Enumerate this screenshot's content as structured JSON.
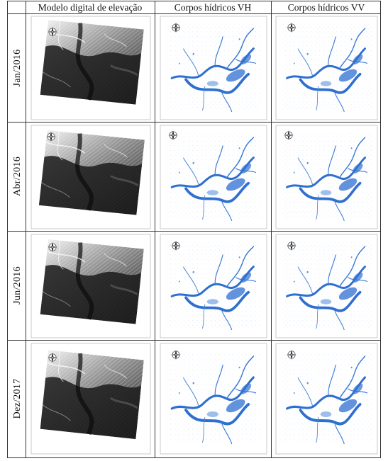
{
  "table": {
    "headers": [
      "Modelo digital de elevação",
      "Corpos hídricos VH",
      "Corpos hídricos VV"
    ],
    "rows": [
      {
        "label": "Jan/2016"
      },
      {
        "label": "Abr/2016"
      },
      {
        "label": "Jun/2016"
      },
      {
        "label": "Dez/2017"
      }
    ]
  },
  "colors": {
    "grid_line": "#333333",
    "water_blue": "#2f6fd0",
    "water_light": "#9dbde8",
    "dem_dark": "#1a1a1a",
    "dem_light": "#e9e9e9",
    "frame": "#c8c8c8"
  },
  "icons": [
    "north-arrow-icon"
  ]
}
